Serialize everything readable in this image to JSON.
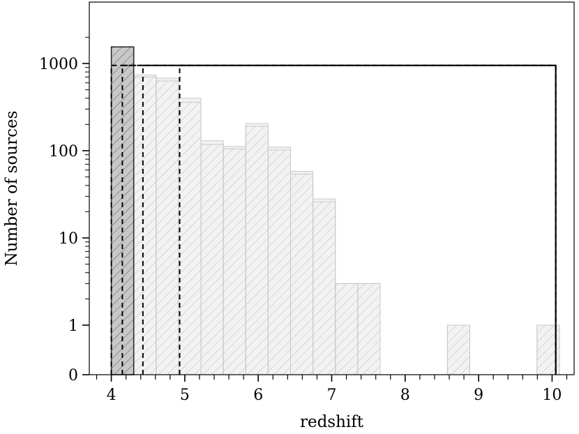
{
  "chart_data": {
    "type": "bar",
    "title": "",
    "xlabel": "redshift",
    "ylabel": "Number of sources",
    "xlim": [
      3.7,
      10.3
    ],
    "yscale": "symlog",
    "ylim": [
      0,
      2000
    ],
    "grid": false,
    "legend": "none",
    "bin_width": 0.305,
    "bins_start": [
      4.0,
      4.305,
      4.61,
      4.915,
      5.22,
      5.525,
      5.83,
      6.135,
      6.44,
      6.745,
      7.05,
      7.355,
      8.575,
      9.795
    ],
    "series": [
      {
        "values": [
          1550,
          740,
          680,
          400,
          130,
          112,
          205,
          110,
          58,
          28,
          3,
          3,
          1,
          1
        ]
      },
      {
        "values": [
          1250,
          700,
          630,
          360,
          118,
          105,
          190,
          102,
          54,
          26,
          3,
          3,
          1,
          1
        ]
      }
    ],
    "highlighted_bin": {
      "x0": 4.0,
      "x1": 4.305,
      "value": 1550
    },
    "dashed_boxes": [
      {
        "x0": 4.0,
        "x1": 10.05,
        "top": 950
      },
      {
        "x0": 4.15,
        "x1": 10.05,
        "top": 950
      },
      {
        "x0": 4.43,
        "x1": 10.05,
        "top": 950
      },
      {
        "x0": 4.93,
        "x1": 10.05,
        "top": 950
      }
    ],
    "x_ticks": [
      4,
      5,
      6,
      7,
      8,
      9,
      10
    ],
    "x_tick_labels": [
      "4",
      "5",
      "6",
      "7",
      "8",
      "9",
      "10"
    ],
    "y_ticks": [
      0,
      1,
      10,
      100,
      1000
    ],
    "y_tick_labels": [
      "0",
      "1",
      "10",
      "100",
      "1000"
    ],
    "colors": {
      "bar_fill": "#f2f2f2",
      "bar_edge": "#c8c8c8",
      "hatch": "#bcbcbc",
      "highlight_fill": "#c8c8c8",
      "highlight_edge": "#222222",
      "axis": "#000000"
    }
  }
}
